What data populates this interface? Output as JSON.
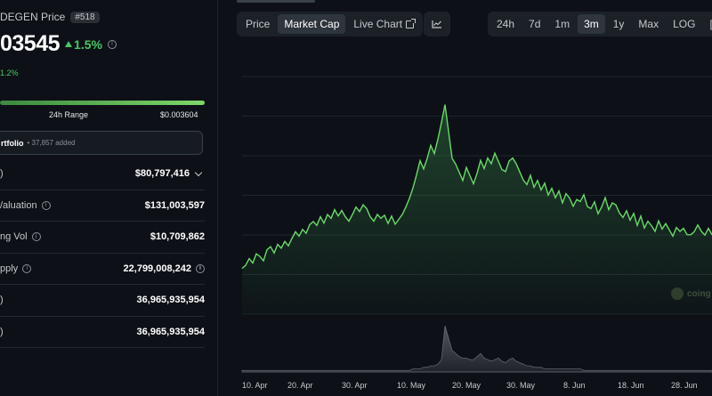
{
  "coin": {
    "title": "DEGEN Price",
    "rank": "#518",
    "price": "03545",
    "change": "1.5%",
    "sub_change": "1.2%"
  },
  "range": {
    "label": "24h Range",
    "high": "$0.003604",
    "fill_pct": 100
  },
  "portfolio": {
    "label": "rtfolio",
    "count": "• 37,857 added"
  },
  "stats": [
    {
      "label": ")",
      "value": "$80,797,416",
      "info": false,
      "chevron": true,
      "value_info": false
    },
    {
      "label": "/aluation",
      "value": "$131,003,597",
      "info": true,
      "chevron": false,
      "value_info": false
    },
    {
      "label": "ng Vol",
      "value": "$10,709,862",
      "info": true,
      "chevron": false,
      "value_info": false
    },
    {
      "label": "pply",
      "value": "22,799,008,242",
      "info": true,
      "chevron": false,
      "value_info": true
    },
    {
      "label": ")",
      "value": "36,965,935,954",
      "info": false,
      "chevron": false,
      "value_info": false
    },
    {
      "label": ")",
      "value": "36,965,935,954",
      "info": false,
      "chevron": false,
      "value_info": false
    }
  ],
  "chart_tabs": [
    "Price",
    "Market Cap",
    "Live Chart"
  ],
  "active_chart_tab": "Market Cap",
  "time_ranges": [
    "24h",
    "7d",
    "1m",
    "3m",
    "1y",
    "Max",
    "LOG",
    "["
  ],
  "active_time_range": "3m",
  "watermark": "coing",
  "colors": {
    "positive": "#4ec562",
    "line": "#6dd96a",
    "background": "#0d1117"
  },
  "chart_data": {
    "type": "area",
    "title": "",
    "xlabel": "",
    "ylabel": "",
    "x_tick_labels": [
      "10. Apr",
      "20. Apr",
      "30. Apr",
      "10. May",
      "20. May",
      "30. May",
      "8. Jun",
      "18. Jun",
      "28. Jun"
    ],
    "y_range": [
      0,
      100
    ],
    "series": [
      {
        "values": [
          12,
          14,
          18,
          16,
          20,
          19,
          17,
          22,
          24,
          21,
          26,
          23,
          27,
          25,
          28,
          32,
          30,
          34,
          31,
          36,
          38,
          35,
          40,
          37,
          42,
          39,
          44,
          41,
          43,
          40,
          38,
          42,
          45,
          43,
          47,
          44,
          40,
          38,
          42,
          39,
          41,
          37,
          40,
          36,
          39,
          42,
          45,
          50,
          56,
          62,
          70,
          66,
          72,
          78,
          74,
          82,
          90,
          100,
          86,
          72,
          68,
          64,
          60,
          66,
          62,
          58,
          64,
          70,
          66,
          72,
          68,
          74,
          70,
          66,
          64,
          70,
          72,
          68,
          64,
          60,
          58,
          62,
          56,
          60,
          54,
          58,
          52,
          56,
          50,
          54,
          48,
          52,
          50,
          46,
          50,
          48,
          52,
          46,
          44,
          48,
          42,
          46,
          50,
          44,
          48,
          46,
          42,
          40,
          44,
          38,
          42,
          36,
          40,
          34,
          38,
          36,
          32,
          38,
          34,
          36,
          33,
          30,
          35,
          32,
          34,
          31,
          30,
          32,
          36,
          33,
          30,
          34,
          31
        ]
      }
    ],
    "volume": [
      1,
      1,
      1,
      1,
      1,
      1,
      1,
      1,
      1,
      1,
      1,
      1,
      1,
      1,
      1,
      1,
      1,
      1,
      1,
      1,
      1,
      1,
      1,
      1,
      1,
      1,
      1,
      1,
      1,
      1,
      1,
      1,
      1,
      1,
      1,
      1,
      1,
      1,
      1,
      1,
      1,
      1,
      1,
      1,
      1,
      1,
      1,
      1,
      2,
      2,
      2,
      3,
      3,
      4,
      4,
      5,
      8,
      30,
      22,
      14,
      12,
      10,
      9,
      9,
      8,
      8,
      10,
      12,
      9,
      8,
      7,
      8,
      9,
      7,
      6,
      8,
      9,
      7,
      6,
      5,
      4,
      4,
      3,
      3,
      3,
      2,
      2,
      2,
      2,
      2,
      2,
      2,
      2,
      2,
      2,
      2,
      1,
      1,
      1,
      1,
      1,
      1,
      1,
      1,
      1,
      1,
      1,
      1,
      1,
      1,
      1,
      1,
      1,
      1,
      1,
      1,
      1,
      1,
      1,
      1,
      1,
      1,
      1,
      1,
      1,
      1,
      1,
      1,
      1,
      1,
      1,
      1,
      1
    ],
    "grid": true,
    "legend": "none"
  }
}
